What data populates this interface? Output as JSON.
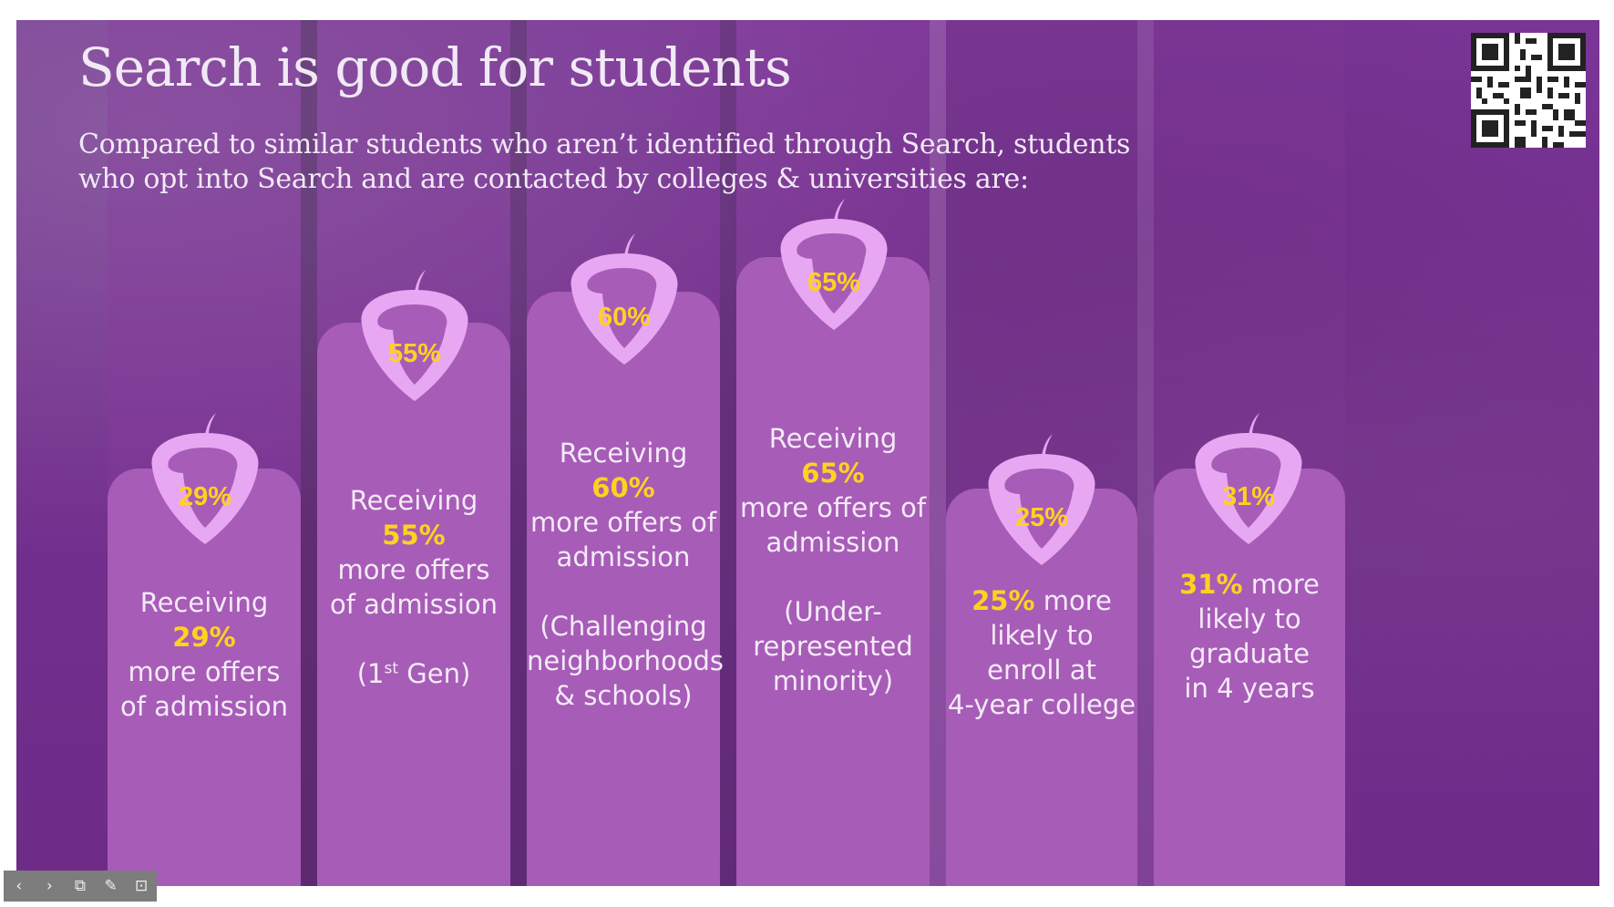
{
  "slide": {
    "title": "Search is good for students",
    "subtitle": "Compared to similar students who aren’t identified through Search, students who opt into Search and are contacted by colleges & universities are:",
    "qr_icon": "qr-code",
    "colors": {
      "background": "#74308f",
      "card": "#a75cb7",
      "acorn": "#e8a7f2",
      "highlight": "#ffd21f",
      "text": "#f4eaf7"
    }
  },
  "cards": [
    {
      "percent": "29%",
      "lead": "Receiving ",
      "highlight": "29%",
      "line1_rest": "",
      "line2": "more offers",
      "line3": "of admission",
      "note": "",
      "note_sup": "",
      "note_rest": ""
    },
    {
      "percent": "55%",
      "lead": "Receiving ",
      "highlight": "55%",
      "line2": "more offers",
      "line3": "of admission",
      "note": "(1",
      "note_sup": "st",
      "note_rest": " Gen)"
    },
    {
      "percent": "60%",
      "lead": "Receiving ",
      "highlight": "60%",
      "line2": "more offers of",
      "line3": "admission",
      "note_lines": [
        "(Challenging",
        "neighborhoods",
        "& schools)"
      ]
    },
    {
      "percent": "65%",
      "lead": "Receiving ",
      "highlight": "65%",
      "line2": "more offers of",
      "line3": "admission",
      "note_lines": [
        "(Under-",
        "represented",
        "minority)"
      ]
    },
    {
      "percent": "25%",
      "highlight": "25%",
      "rest": " more",
      "lines": [
        "likely to",
        "enroll at",
        "4-year college"
      ]
    },
    {
      "percent": "31%",
      "highlight": "31%",
      "rest": " more",
      "lines": [
        "likely to",
        "graduate",
        "in 4 years"
      ]
    }
  ],
  "toolbar": {
    "prev_icon": "‹",
    "next_icon": "›",
    "slides_icon": "⧉",
    "pen_icon": "✎",
    "present_icon": "⊡"
  }
}
